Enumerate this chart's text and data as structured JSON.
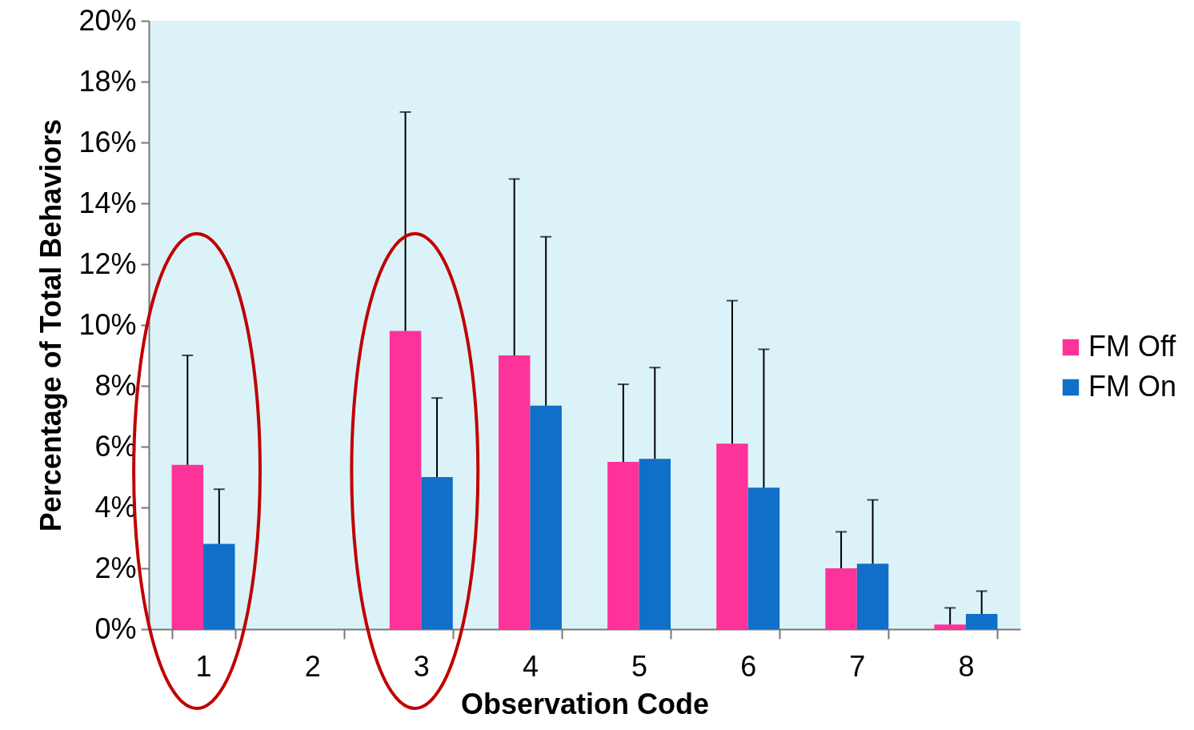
{
  "chart_data": {
    "type": "bar",
    "xlabel": "Observation Code",
    "ylabel": "Percentage of Total Behaviors",
    "categories": [
      "1",
      "2",
      "3",
      "4",
      "5",
      "6",
      "7",
      "8"
    ],
    "series": [
      {
        "name": "FM Off",
        "color": "#fe3399",
        "values": [
          5.4,
          null,
          9.8,
          9.0,
          5.5,
          6.1,
          2.0,
          0.15
        ],
        "errors": [
          [
            5.4,
            9.0
          ],
          null,
          [
            9.8,
            17.0
          ],
          [
            9.0,
            14.8
          ],
          [
            5.5,
            8.05
          ],
          [
            6.1,
            10.8
          ],
          [
            2.0,
            3.2
          ],
          [
            0.15,
            0.7
          ]
        ]
      },
      {
        "name": "FM On",
        "color": "#106fc8",
        "values": [
          2.8,
          null,
          5.0,
          7.35,
          5.6,
          4.65,
          2.15,
          0.5
        ],
        "errors": [
          [
            2.8,
            4.6
          ],
          null,
          [
            5.0,
            7.6
          ],
          [
            7.35,
            12.9
          ],
          [
            5.6,
            8.6
          ],
          [
            4.65,
            9.2
          ],
          [
            2.15,
            4.25
          ],
          [
            0.5,
            1.25
          ]
        ]
      }
    ],
    "ylim": [
      0,
      20
    ],
    "yticks": [
      {
        "value": 0,
        "label": "0%"
      },
      {
        "value": 2,
        "label": "2%"
      },
      {
        "value": 4,
        "label": "4%"
      },
      {
        "value": 6,
        "label": "6%"
      },
      {
        "value": 8,
        "label": "8%"
      },
      {
        "value": 10,
        "label": "10%"
      },
      {
        "value": 12,
        "label": "12%"
      },
      {
        "value": 14,
        "label": "14%"
      },
      {
        "value": 16,
        "label": "16%"
      },
      {
        "value": 18,
        "label": "18%"
      },
      {
        "value": 20,
        "label": "20%"
      }
    ],
    "grid": false,
    "legend": "right"
  }
}
